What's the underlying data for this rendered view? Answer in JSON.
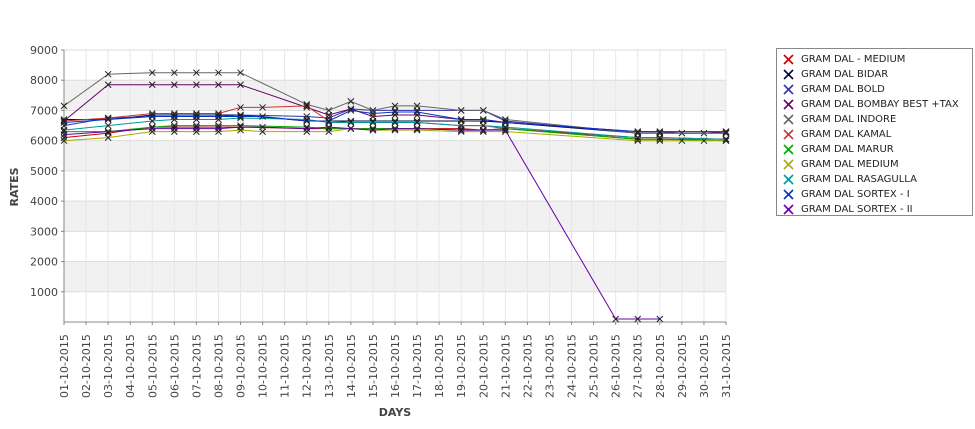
{
  "chart_data": {
    "type": "line",
    "title": "",
    "xlabel": "DAYS",
    "ylabel": "RATES",
    "ylim": [
      0,
      9000
    ],
    "yticks": [
      1000,
      2000,
      3000,
      4000,
      5000,
      6000,
      7000,
      8000,
      9000
    ],
    "grid": true,
    "legend_position": "right",
    "categories": [
      "01-10-2015",
      "02-10-2015",
      "03-10-2015",
      "04-10-2015",
      "05-10-2015",
      "06-10-2015",
      "07-10-2015",
      "08-10-2015",
      "09-10-2015",
      "10-10-2015",
      "11-10-2015",
      "12-10-2015",
      "13-10-2015",
      "14-10-2015",
      "15-10-2015",
      "16-10-2015",
      "17-10-2015",
      "18-10-2015",
      "19-10-2015",
      "20-10-2015",
      "21-10-2015",
      "22-10-2015",
      "23-10-2015",
      "24-10-2015",
      "25-10-2015",
      "26-10-2015",
      "27-10-2015",
      "28-10-2015",
      "29-10-2015",
      "30-10-2015",
      "31-10-2015"
    ],
    "series": [
      {
        "name": "GRAM DAL - MEDIUM",
        "color": "#cc0000",
        "values": [
          6100,
          null,
          6250,
          null,
          6450,
          6450,
          6450,
          6450,
          6450,
          null,
          null,
          6400,
          6400,
          6400,
          6400,
          6400,
          6400,
          null,
          6400,
          6350,
          6400,
          null,
          null,
          null,
          null,
          null,
          6100,
          6100,
          null,
          null,
          6050
        ]
      },
      {
        "name": "GRAM DAL BIDAR",
        "color": "#000044",
        "values": [
          6700,
          null,
          6700,
          null,
          6850,
          6850,
          6850,
          6850,
          6850,
          null,
          null,
          6650,
          6650,
          6650,
          6650,
          6650,
          6650,
          null,
          6650,
          6650,
          6600,
          null,
          null,
          null,
          null,
          null,
          6250,
          6250,
          null,
          null,
          6250
        ]
      },
      {
        "name": "GRAM DAL BOLD",
        "color": "#3333aa",
        "values": [
          6500,
          null,
          6750,
          null,
          6800,
          6800,
          6800,
          6800,
          6850,
          null,
          null,
          6800,
          6750,
          7050,
          7000,
          7000,
          7000,
          null,
          7000,
          7000,
          6650,
          null,
          null,
          null,
          null,
          null,
          6250,
          6250,
          null,
          null,
          6250
        ]
      },
      {
        "name": "GRAM DAL BOMBAY BEST +TAX",
        "color": "#660066",
        "values": [
          6650,
          null,
          7850,
          null,
          7850,
          7850,
          7850,
          7850,
          7850,
          null,
          null,
          7100,
          6850,
          7050,
          6800,
          6850,
          6850,
          null,
          6700,
          6700,
          6600,
          null,
          null,
          null,
          null,
          null,
          6300,
          6300,
          6250,
          6250,
          6300
        ]
      },
      {
        "name": "GRAM DAL INDORE",
        "color": "#666666",
        "values": [
          7150,
          null,
          8200,
          null,
          8250,
          8250,
          8250,
          8250,
          8250,
          null,
          null,
          7200,
          7000,
          7300,
          7000,
          7150,
          7150,
          null,
          7000,
          7000,
          6700,
          null,
          null,
          null,
          null,
          null,
          6250,
          6250,
          null,
          null,
          6250
        ]
      },
      {
        "name": "GRAM DAL KAMAL",
        "color": "#cc3333",
        "values": [
          6650,
          null,
          6750,
          null,
          6900,
          6900,
          6900,
          6900,
          7100,
          7100,
          null,
          7150,
          6650,
          6600,
          6600,
          6600,
          6600,
          null,
          6500,
          6500,
          6400,
          null,
          null,
          null,
          null,
          null,
          6050,
          6050,
          null,
          null,
          6050
        ]
      },
      {
        "name": "GRAM DAL MARUR",
        "color": "#00aa00",
        "values": [
          6300,
          null,
          6300,
          null,
          6450,
          6500,
          6500,
          6500,
          6500,
          null,
          null,
          6450,
          6400,
          6400,
          6400,
          6400,
          6400,
          null,
          6350,
          6350,
          6400,
          null,
          null,
          null,
          null,
          null,
          6050,
          6050,
          null,
          null,
          6000
        ]
      },
      {
        "name": "GRAM DAL MEDIUM",
        "color": "#aaaa00",
        "values": [
          6000,
          null,
          6100,
          null,
          6300,
          6300,
          6300,
          6300,
          6350,
          6300,
          null,
          6300,
          6300,
          6400,
          6350,
          6350,
          6350,
          null,
          6300,
          6300,
          6300,
          null,
          null,
          null,
          null,
          null,
          6000,
          6000,
          6000,
          6000,
          6000
        ]
      },
      {
        "name": "GRAM DAL RASAGULLA",
        "color": "#009999",
        "values": [
          6350,
          null,
          6500,
          null,
          6650,
          6700,
          6700,
          6700,
          6750,
          null,
          null,
          6700,
          6600,
          6600,
          6600,
          6600,
          6600,
          null,
          6500,
          6500,
          6450,
          null,
          null,
          null,
          null,
          null,
          6100,
          6100,
          null,
          null,
          6050
        ]
      },
      {
        "name": "GRAM DAL SORTEX  - I",
        "color": "#0033cc",
        "values": [
          6600,
          null,
          6700,
          null,
          6800,
          6800,
          6800,
          6800,
          6800,
          6800,
          null,
          6650,
          6650,
          7000,
          6900,
          6950,
          6950,
          null,
          6700,
          6700,
          6600,
          null,
          null,
          null,
          null,
          null,
          6300,
          6300,
          null,
          null,
          6300
        ]
      },
      {
        "name": "GRAM DAL SORTEX - II",
        "color": "#6600aa",
        "values": [
          6200,
          null,
          6300,
          null,
          6400,
          6400,
          6400,
          6400,
          6450,
          6450,
          null,
          6400,
          6450,
          6400,
          6350,
          6400,
          6400,
          null,
          6350,
          6350,
          6350,
          null,
          null,
          null,
          null,
          100,
          100,
          100,
          null,
          null,
          null
        ]
      }
    ]
  }
}
